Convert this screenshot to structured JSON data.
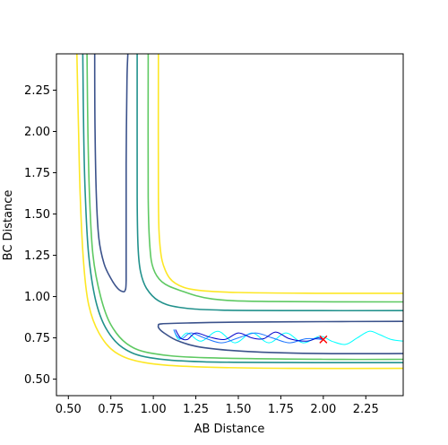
{
  "chart_data": {
    "type": "line",
    "subtype": "contour",
    "title": "",
    "xlabel": "AB Distance",
    "ylabel": "BC Distance",
    "xlim": [
      0.43,
      2.47
    ],
    "ylim": [
      0.4,
      2.47
    ],
    "xticks": [
      0.5,
      0.75,
      1.0,
      1.25,
      1.5,
      1.75,
      2.0,
      2.25
    ],
    "yticks": [
      0.5,
      0.75,
      1.0,
      1.25,
      1.5,
      1.75,
      2.0,
      2.25
    ],
    "xtick_labels": [
      "0.50",
      "0.75",
      "1.00",
      "1.25",
      "1.50",
      "1.75",
      "2.00",
      "2.25"
    ],
    "ytick_labels": [
      "0.50",
      "0.75",
      "1.00",
      "1.25",
      "1.50",
      "1.75",
      "2.00",
      "2.25"
    ],
    "grid": false,
    "legend": "none",
    "contours": [
      {
        "color": "#fde725",
        "points": [
          [
            0.55,
            2.47
          ],
          [
            0.56,
            2.0
          ],
          [
            0.57,
            1.6
          ],
          [
            0.59,
            1.2
          ],
          [
            0.62,
            0.95
          ],
          [
            0.68,
            0.78
          ],
          [
            0.78,
            0.66
          ],
          [
            0.95,
            0.6
          ],
          [
            1.25,
            0.575
          ],
          [
            1.8,
            0.565
          ],
          [
            2.47,
            0.565
          ]
        ]
      },
      {
        "color": "#fde725",
        "points": [
          [
            1.03,
            2.47
          ],
          [
            1.03,
            1.6
          ],
          [
            1.04,
            1.3
          ],
          [
            1.07,
            1.16
          ],
          [
            1.13,
            1.08
          ],
          [
            1.25,
            1.04
          ],
          [
            1.5,
            1.025
          ],
          [
            2.0,
            1.02
          ],
          [
            2.47,
            1.02
          ]
        ]
      },
      {
        "color": "#21918c",
        "points": [
          [
            0.585,
            2.47
          ],
          [
            0.59,
            2.0
          ],
          [
            0.6,
            1.6
          ],
          [
            0.62,
            1.25
          ],
          [
            0.66,
            0.98
          ],
          [
            0.72,
            0.81
          ],
          [
            0.82,
            0.69
          ],
          [
            0.98,
            0.63
          ],
          [
            1.3,
            0.605
          ],
          [
            2.0,
            0.6
          ],
          [
            2.47,
            0.6
          ]
        ]
      },
      {
        "color": "#5ec962",
        "points": [
          [
            0.97,
            2.47
          ],
          [
            0.97,
            1.6
          ],
          [
            0.98,
            1.3
          ],
          [
            1.0,
            1.17
          ],
          [
            1.05,
            1.09
          ],
          [
            1.15,
            1.04
          ],
          [
            1.35,
            0.985
          ],
          [
            1.7,
            0.97
          ],
          [
            2.47,
            0.968
          ]
        ]
      },
      {
        "color": "#5ec962",
        "points": [
          [
            0.61,
            2.47
          ],
          [
            0.615,
            2.0
          ],
          [
            0.625,
            1.6
          ],
          [
            0.645,
            1.25
          ],
          [
            0.69,
            1.0
          ],
          [
            0.75,
            0.83
          ],
          [
            0.85,
            0.71
          ],
          [
            1.0,
            0.655
          ],
          [
            1.3,
            0.63
          ],
          [
            2.0,
            0.62
          ],
          [
            2.47,
            0.62
          ]
        ]
      },
      {
        "color": "#21918c",
        "points": [
          [
            0.905,
            2.47
          ],
          [
            0.905,
            1.6
          ],
          [
            0.91,
            1.3
          ],
          [
            0.925,
            1.15
          ],
          [
            0.96,
            1.05
          ],
          [
            1.03,
            0.975
          ],
          [
            1.15,
            0.935
          ],
          [
            1.4,
            0.918
          ],
          [
            2.0,
            0.915
          ],
          [
            2.47,
            0.915
          ]
        ]
      },
      {
        "color": "#3b528b",
        "points": [
          [
            0.655,
            2.47
          ],
          [
            0.657,
            2.0
          ],
          [
            0.665,
            1.6
          ],
          [
            0.68,
            1.35
          ],
          [
            0.71,
            1.2
          ],
          [
            0.75,
            1.11
          ],
          [
            0.79,
            1.05
          ],
          [
            0.82,
            1.03
          ],
          [
            0.835,
            1.04
          ],
          [
            0.84,
            1.1
          ],
          [
            0.84,
            1.4
          ],
          [
            0.84,
            1.8
          ],
          [
            0.845,
            2.3
          ],
          [
            0.85,
            2.47
          ]
        ]
      },
      {
        "color": "#3b528b",
        "points": [
          [
            2.47,
            0.85
          ],
          [
            2.0,
            0.848
          ],
          [
            1.5,
            0.845
          ],
          [
            1.2,
            0.84
          ],
          [
            1.05,
            0.835
          ],
          [
            1.03,
            0.825
          ],
          [
            1.035,
            0.805
          ],
          [
            1.07,
            0.775
          ],
          [
            1.15,
            0.73
          ],
          [
            1.3,
            0.69
          ],
          [
            1.6,
            0.665
          ],
          [
            2.0,
            0.655
          ],
          [
            2.47,
            0.655
          ]
        ]
      }
    ],
    "series": [
      {
        "color": "#00ffff",
        "points": [
          [
            1.12,
            0.8
          ],
          [
            1.15,
            0.74
          ],
          [
            1.2,
            0.78
          ],
          [
            1.28,
            0.73
          ],
          [
            1.38,
            0.79
          ],
          [
            1.48,
            0.72
          ],
          [
            1.58,
            0.78
          ],
          [
            1.68,
            0.72
          ],
          [
            1.78,
            0.78
          ],
          [
            1.88,
            0.72
          ],
          [
            1.98,
            0.76
          ],
          [
            2.05,
            0.73
          ],
          [
            2.13,
            0.71
          ],
          [
            2.2,
            0.75
          ],
          [
            2.27,
            0.79
          ],
          [
            2.33,
            0.77
          ],
          [
            2.4,
            0.74
          ],
          [
            2.47,
            0.73
          ]
        ]
      },
      {
        "color": "#1f77ff",
        "points": [
          [
            1.12,
            0.8
          ],
          [
            1.14,
            0.76
          ],
          [
            1.17,
            0.745
          ],
          [
            1.22,
            0.78
          ],
          [
            1.3,
            0.75
          ],
          [
            1.4,
            0.72
          ],
          [
            1.5,
            0.75
          ],
          [
            1.6,
            0.78
          ],
          [
            1.7,
            0.75
          ],
          [
            1.8,
            0.72
          ],
          [
            1.9,
            0.745
          ],
          [
            2.0,
            0.74
          ]
        ]
      },
      {
        "color": "#0000cc",
        "points": [
          [
            1.13,
            0.8
          ],
          [
            1.16,
            0.75
          ],
          [
            1.2,
            0.74
          ],
          [
            1.25,
            0.78
          ],
          [
            1.33,
            0.755
          ],
          [
            1.42,
            0.74
          ],
          [
            1.5,
            0.78
          ],
          [
            1.58,
            0.75
          ],
          [
            1.65,
            0.745
          ],
          [
            1.72,
            0.785
          ],
          [
            1.8,
            0.745
          ],
          [
            1.9,
            0.73
          ],
          [
            1.97,
            0.75
          ],
          [
            2.0,
            0.74
          ]
        ]
      }
    ],
    "marker": {
      "x": 2.0,
      "y": 0.74,
      "symbol": "x",
      "color": "#ff0000"
    }
  }
}
